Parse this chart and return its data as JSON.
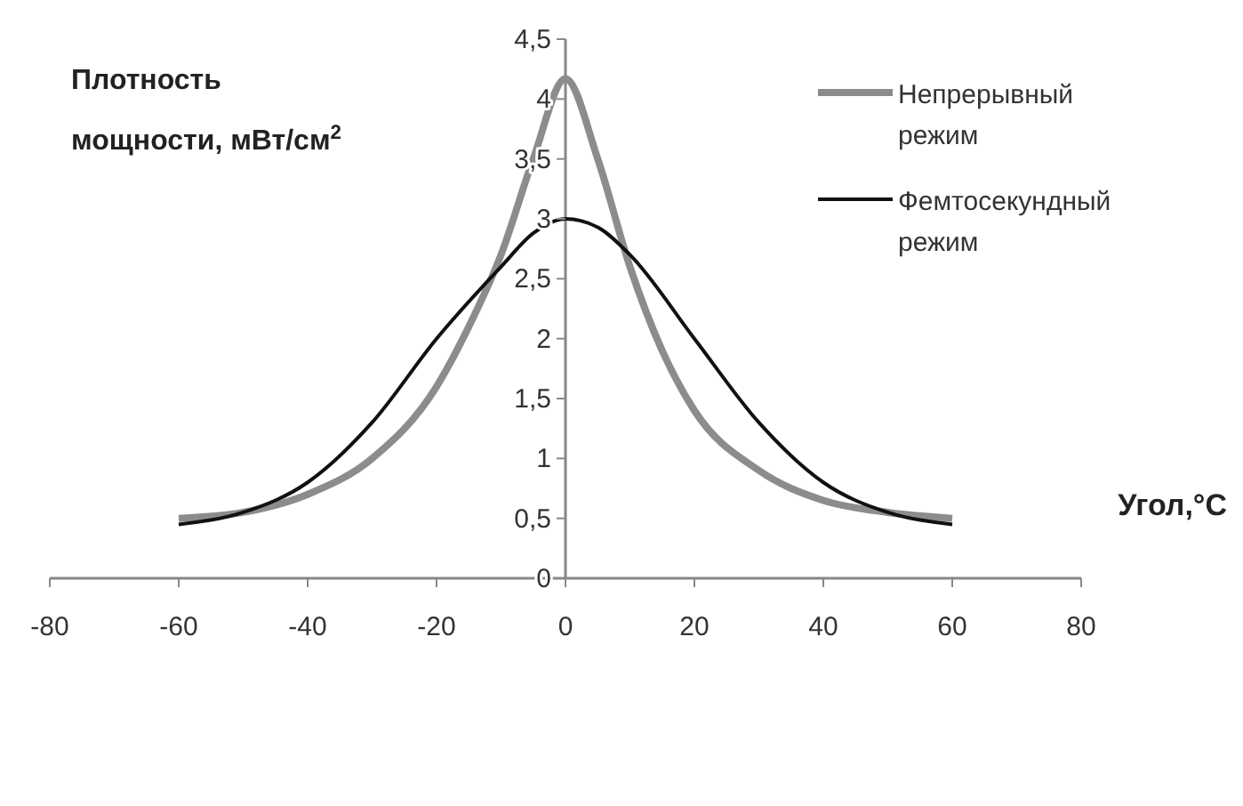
{
  "chart_data": {
    "type": "line",
    "ylabel": "Плотность мощности, мВт/см$^{2}$",
    "xlabel": "Угол,°C",
    "xlim": [
      -80,
      80
    ],
    "xticks": [
      -80,
      -60,
      -40,
      -20,
      0,
      20,
      40,
      60,
      80
    ],
    "ylim": [
      0,
      4.5
    ],
    "yticks": [
      0,
      {
        "value": 0.5,
        "label": "0,5"
      },
      1,
      {
        "value": 1.5,
        "label": "1,5"
      },
      2,
      {
        "value": 2.5,
        "label": "2,5"
      },
      3,
      {
        "value": 3.5,
        "label": "3,5"
      },
      4,
      {
        "value": 4.5,
        "label": "4,5"
      }
    ],
    "grid": false,
    "legend": "top right",
    "marker": "none",
    "line_style": "solid",
    "series": [
      {
        "name": "Непрерывный режим",
        "color": "#8c8c8c",
        "x": [
          -60,
          -50,
          -40,
          -30,
          -20,
          -15,
          -10,
          -5,
          0,
          5,
          10,
          15,
          20,
          30,
          40,
          50,
          60
        ],
        "values": [
          0.5,
          0.55,
          0.7,
          1.0,
          1.6,
          2.1,
          2.7,
          3.5,
          4.17,
          3.5,
          2.6,
          1.9,
          1.4,
          0.9,
          0.65,
          0.55,
          0.5
        ]
      },
      {
        "name": "Фемтосекундный режим",
        "color": "#111111",
        "x": [
          -60,
          -50,
          -40,
          -30,
          -20,
          -10,
          -5,
          0,
          5,
          10,
          20,
          30,
          40,
          50,
          60
        ],
        "values": [
          0.45,
          0.55,
          0.8,
          1.3,
          2.0,
          2.6,
          2.88,
          3.0,
          2.93,
          2.7,
          2.0,
          1.3,
          0.8,
          0.55,
          0.45
        ]
      }
    ]
  }
}
